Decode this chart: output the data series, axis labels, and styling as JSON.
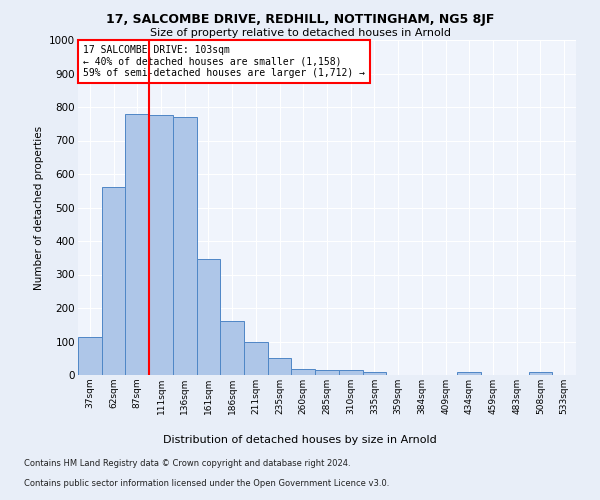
{
  "title1": "17, SALCOMBE DRIVE, REDHILL, NOTTINGHAM, NG5 8JF",
  "title2": "Size of property relative to detached houses in Arnold",
  "xlabel": "Distribution of detached houses by size in Arnold",
  "ylabel": "Number of detached properties",
  "categories": [
    "37sqm",
    "62sqm",
    "87sqm",
    "111sqm",
    "136sqm",
    "161sqm",
    "186sqm",
    "211sqm",
    "235sqm",
    "260sqm",
    "285sqm",
    "310sqm",
    "335sqm",
    "359sqm",
    "384sqm",
    "409sqm",
    "434sqm",
    "459sqm",
    "483sqm",
    "508sqm",
    "533sqm"
  ],
  "values": [
    112,
    560,
    780,
    775,
    770,
    345,
    162,
    98,
    52,
    18,
    14,
    14,
    10,
    0,
    0,
    0,
    8,
    0,
    0,
    8,
    0
  ],
  "bar_color": "#aec6e8",
  "bar_edge_color": "#4f86c6",
  "vline_x_index": 2.5,
  "vline_color": "red",
  "annotation_title": "17 SALCOMBE DRIVE: 103sqm",
  "annotation_line1": "← 40% of detached houses are smaller (1,158)",
  "annotation_line2": "59% of semi-detached houses are larger (1,712) →",
  "annotation_box_color": "white",
  "annotation_box_edge_color": "red",
  "ylim": [
    0,
    1000
  ],
  "yticks": [
    0,
    100,
    200,
    300,
    400,
    500,
    600,
    700,
    800,
    900,
    1000
  ],
  "footer1": "Contains HM Land Registry data © Crown copyright and database right 2024.",
  "footer2": "Contains public sector information licensed under the Open Government Licence v3.0.",
  "bg_color": "#e8eef8",
  "plot_bg_color": "#f0f4fc",
  "grid_color": "#ffffff"
}
